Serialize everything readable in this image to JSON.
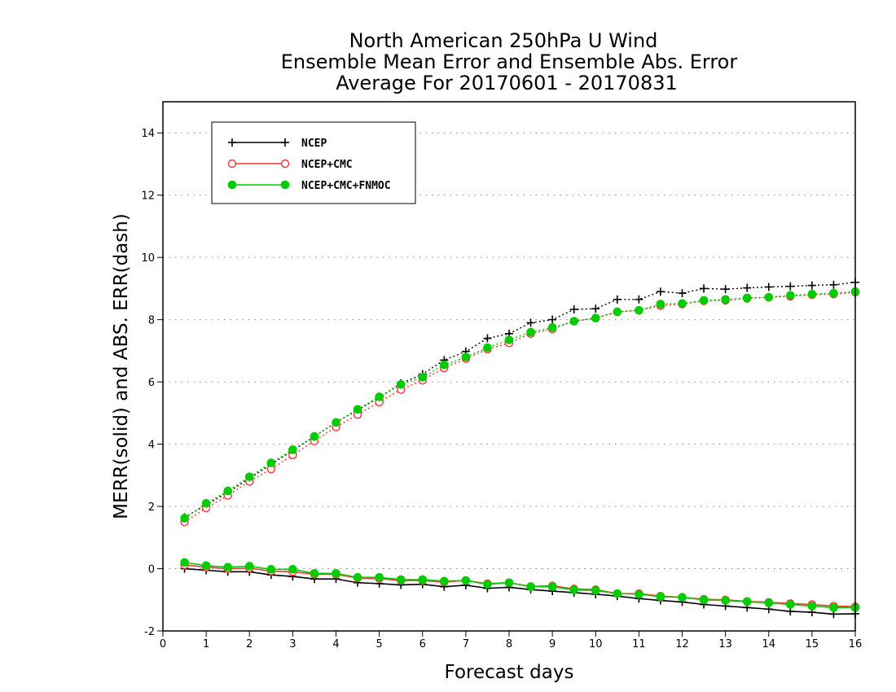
{
  "chart_data": {
    "type": "line",
    "title_lines": [
      "North American 250hPa U Wind",
      "Ensemble Mean Error and Ensemble Abs. Error",
      "Average For 20170601 - 20170831"
    ],
    "xlabel": "Forecast days",
    "ylabel": "MERR(solid) and ABS. ERR(dash)",
    "xlim": [
      0,
      16
    ],
    "ylim": [
      -2,
      15
    ],
    "x_ticks": [
      "0",
      "1",
      "2",
      "3",
      "4",
      "5",
      "6",
      "7",
      "8",
      "9",
      "10",
      "11",
      "12",
      "13",
      "14",
      "15",
      "16"
    ],
    "y_ticks": [
      "-2",
      "0",
      "2",
      "4",
      "6",
      "8",
      "10",
      "12",
      "14"
    ],
    "grid": "horizontal dotted at y ticks",
    "legend_position": "top-left",
    "x": [
      0.5,
      1,
      1.5,
      2,
      2.5,
      3,
      3.5,
      4,
      4.5,
      5,
      5.5,
      6,
      6.5,
      7,
      7.5,
      8,
      8.5,
      9,
      9.5,
      10,
      10.5,
      11,
      11.5,
      12,
      12.5,
      13,
      13.5,
      14,
      14.5,
      15,
      15.5,
      16
    ],
    "series": [
      {
        "name": "NCEP",
        "color": "#000000",
        "marker": "plus",
        "merr": [
          0,
          -0.05,
          -0.1,
          -0.1,
          -0.2,
          -0.25,
          -0.33,
          -0.33,
          -0.45,
          -0.48,
          -0.52,
          -0.5,
          -0.58,
          -0.53,
          -0.63,
          -0.6,
          -0.67,
          -0.72,
          -0.77,
          -0.82,
          -0.88,
          -0.96,
          -1.02,
          -1.07,
          -1.15,
          -1.2,
          -1.25,
          -1.3,
          -1.37,
          -1.4,
          -1.46,
          -1.45
        ],
        "abs_err": [
          1.65,
          2.05,
          2.45,
          2.9,
          3.35,
          3.8,
          4.25,
          4.7,
          5.1,
          5.5,
          5.95,
          6.25,
          6.7,
          6.98,
          7.4,
          7.55,
          7.9,
          8.0,
          8.33,
          8.35,
          8.65,
          8.65,
          8.9,
          8.85,
          9.0,
          8.98,
          9.02,
          9.05,
          9.07,
          9.1,
          9.12,
          9.2
        ]
      },
      {
        "name": "NCEP+CMC",
        "color": "#ff3333",
        "marker": "open-circle",
        "merr": [
          0.12,
          0.05,
          0,
          0.02,
          -0.08,
          -0.1,
          -0.18,
          -0.18,
          -0.3,
          -0.32,
          -0.38,
          -0.38,
          -0.43,
          -0.38,
          -0.48,
          -0.45,
          -0.57,
          -0.55,
          -0.65,
          -0.67,
          -0.8,
          -0.8,
          -0.88,
          -0.92,
          -0.98,
          -1.0,
          -1.05,
          -1.08,
          -1.12,
          -1.15,
          -1.2,
          -1.22
        ],
        "abs_err": [
          1.5,
          1.95,
          2.35,
          2.8,
          3.2,
          3.65,
          4.1,
          4.55,
          4.95,
          5.35,
          5.75,
          6.05,
          6.45,
          6.75,
          7.05,
          7.25,
          7.55,
          7.7,
          7.95,
          8.05,
          8.25,
          8.3,
          8.45,
          8.5,
          8.6,
          8.62,
          8.68,
          8.72,
          8.75,
          8.8,
          8.82,
          8.88
        ]
      },
      {
        "name": "NCEP+CMC+FNMOC",
        "color": "#00cc00",
        "marker": "filled-circle",
        "merr": [
          0.2,
          0.1,
          0.05,
          0.08,
          -0.02,
          -0.02,
          -0.15,
          -0.15,
          -0.28,
          -0.28,
          -0.35,
          -0.35,
          -0.4,
          -0.38,
          -0.5,
          -0.45,
          -0.58,
          -0.58,
          -0.68,
          -0.7,
          -0.8,
          -0.82,
          -0.9,
          -0.92,
          -1.0,
          -1.02,
          -1.06,
          -1.1,
          -1.15,
          -1.2,
          -1.25,
          -1.25
        ],
        "abs_err": [
          1.62,
          2.1,
          2.5,
          2.95,
          3.4,
          3.82,
          4.25,
          4.7,
          5.12,
          5.52,
          5.92,
          6.15,
          6.55,
          6.8,
          7.1,
          7.35,
          7.6,
          7.75,
          7.95,
          8.05,
          8.25,
          8.3,
          8.5,
          8.52,
          8.62,
          8.65,
          8.7,
          8.72,
          8.78,
          8.82,
          8.85,
          8.9
        ]
      }
    ]
  }
}
